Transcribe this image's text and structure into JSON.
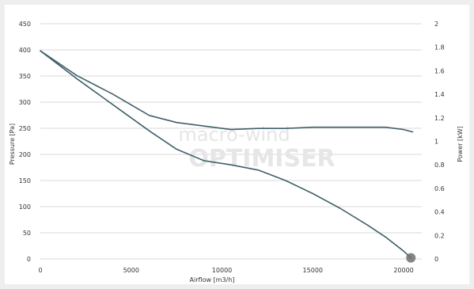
{
  "chart_data": {
    "type": "line",
    "xlabel": "Airflow [m3/h]",
    "ylabel": "Pressure [Pa]",
    "y2label": "Power [kW]",
    "xticks": [
      "0",
      "5000",
      "10000",
      "15000",
      "20000"
    ],
    "yticks": [
      "0",
      "50",
      "100",
      "150",
      "200",
      "250",
      "300",
      "350",
      "400",
      "450"
    ],
    "y2ticks": [
      "0",
      "0.2",
      "0.4",
      "0.6",
      "0.8",
      "1",
      "1.2",
      "1.4",
      "1.6",
      "1.8",
      "2"
    ],
    "xlim": [
      0,
      21000
    ],
    "ylim": [
      0,
      450
    ],
    "y2lim": [
      0,
      2
    ],
    "grid": true,
    "series": [
      {
        "axis": "y2",
        "color": "#40606a",
        "x": [
          0,
          2000,
          4000,
          6000,
          7500,
          9000,
          10500,
          12000,
          13500,
          15000,
          16500,
          18000,
          19000,
          20000,
          20500
        ],
        "values": [
          1.77,
          1.56,
          1.4,
          1.22,
          1.16,
          1.13,
          1.1,
          1.11,
          1.11,
          1.12,
          1.12,
          1.12,
          1.12,
          1.1,
          1.08
        ]
      },
      {
        "axis": "y",
        "color": "#40606a",
        "x": [
          0,
          2000,
          4000,
          6000,
          7500,
          9000,
          10500,
          12000,
          13500,
          15000,
          16500,
          18000,
          19000,
          20000,
          20400
        ],
        "values": [
          398,
          345,
          295,
          245,
          210,
          188,
          180,
          170,
          150,
          125,
          97,
          65,
          42,
          15,
          2
        ]
      }
    ],
    "operating_point": {
      "x": 20400,
      "y": 2,
      "color": "#6e6e6e"
    }
  },
  "watermark": {
    "line1": "macro-wind",
    "line2": "OPTIMISER"
  }
}
